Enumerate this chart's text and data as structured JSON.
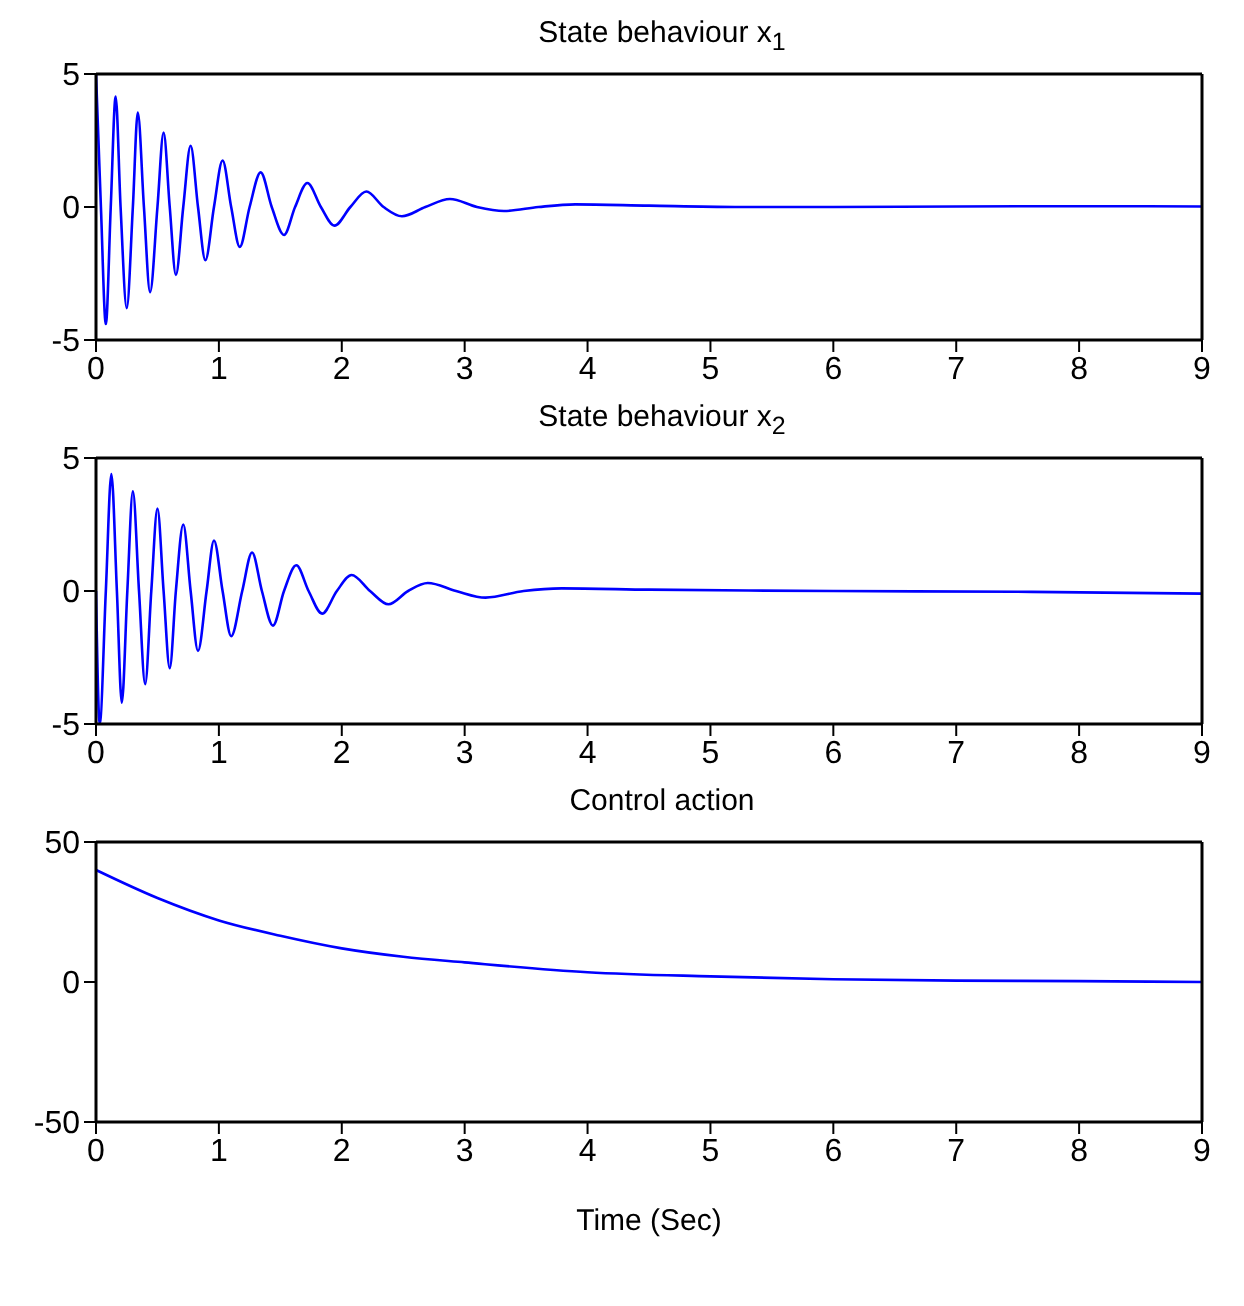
{
  "chart_data": [
    {
      "type": "line",
      "title": "State behaviour x$_{1}$",
      "color": "#0000ff",
      "marker": "none",
      "grid": false,
      "xlim": [
        0,
        9
      ],
      "ylim": [
        -5,
        5
      ],
      "xticks": [
        0,
        1,
        2,
        3,
        4,
        5,
        6,
        7,
        8,
        9
      ],
      "yticks": [
        -5,
        0,
        5
      ],
      "x": [
        0,
        0.04,
        0.08,
        0.12,
        0.16,
        0.2,
        0.25,
        0.3,
        0.34,
        0.39,
        0.44,
        0.5,
        0.55,
        0.6,
        0.65,
        0.71,
        0.77,
        0.83,
        0.89,
        0.96,
        1.03,
        1.1,
        1.17,
        1.25,
        1.34,
        1.43,
        1.53,
        1.62,
        1.72,
        1.83,
        1.94,
        2.07,
        2.2,
        2.34,
        2.49,
        2.68,
        2.88,
        3.1,
        3.32,
        3.6,
        3.9,
        4.5,
        5.2,
        6,
        7,
        8,
        9
      ],
      "values": [
        5,
        0,
        -4.4,
        0,
        4.15,
        0,
        -3.8,
        0,
        3.55,
        0,
        -3.2,
        0,
        2.8,
        0,
        -2.55,
        0,
        2.3,
        0,
        -2.0,
        0,
        1.75,
        0,
        -1.5,
        0,
        1.3,
        0,
        -1.05,
        0,
        0.9,
        0,
        -0.7,
        0,
        0.58,
        0,
        -0.35,
        0,
        0.3,
        0,
        -0.15,
        0,
        0.1,
        0.05,
        0,
        0,
        0.02,
        0.03,
        0.02
      ]
    },
    {
      "type": "line",
      "title": "State behaviour x$_{2}$",
      "color": "#0000ff",
      "marker": "none",
      "grid": false,
      "xlim": [
        0,
        9
      ],
      "ylim": [
        -5,
        5
      ],
      "xticks": [
        0,
        1,
        2,
        3,
        4,
        5,
        6,
        7,
        8,
        9
      ],
      "yticks": [
        -5,
        0,
        5
      ],
      "x": [
        0,
        0.03,
        0.08,
        0.125,
        0.17,
        0.21,
        0.255,
        0.3,
        0.35,
        0.4,
        0.45,
        0.5,
        0.55,
        0.6,
        0.65,
        0.71,
        0.77,
        0.83,
        0.9,
        0.96,
        1.03,
        1.1,
        1.19,
        1.27,
        1.35,
        1.44,
        1.53,
        1.63,
        1.73,
        1.84,
        1.96,
        2.08,
        2.23,
        2.38,
        2.54,
        2.7,
        2.93,
        3.17,
        3.48,
        3.79,
        4.5,
        6,
        7.5,
        9
      ],
      "values": [
        0,
        -5,
        0,
        4.4,
        0,
        -4.2,
        0,
        3.75,
        0,
        -3.5,
        0,
        3.1,
        0,
        -2.9,
        0,
        2.5,
        0,
        -2.25,
        0,
        1.9,
        0,
        -1.7,
        0,
        1.45,
        0,
        -1.3,
        0,
        0.97,
        0,
        -0.85,
        0,
        0.6,
        0,
        -0.5,
        0,
        0.3,
        0,
        -0.25,
        0,
        0.1,
        0.05,
        0,
        -0.03,
        -0.1
      ]
    },
    {
      "type": "line",
      "title": "Control action",
      "xlabel": "Time (Sec)",
      "color": "#0000ff",
      "marker": "none",
      "grid": false,
      "xlim": [
        0,
        9
      ],
      "ylim": [
        -50,
        50
      ],
      "xticks": [
        0,
        1,
        2,
        3,
        4,
        5,
        6,
        7,
        8,
        9
      ],
      "yticks": [
        -50,
        0,
        50
      ],
      "x": [
        0,
        0.5,
        1,
        1.5,
        2,
        2.5,
        3,
        4,
        5,
        6,
        7,
        8,
        9
      ],
      "values": [
        40,
        30,
        22,
        16.5,
        12,
        9,
        7,
        3.5,
        2,
        1,
        0.5,
        0.3,
        0
      ]
    }
  ]
}
